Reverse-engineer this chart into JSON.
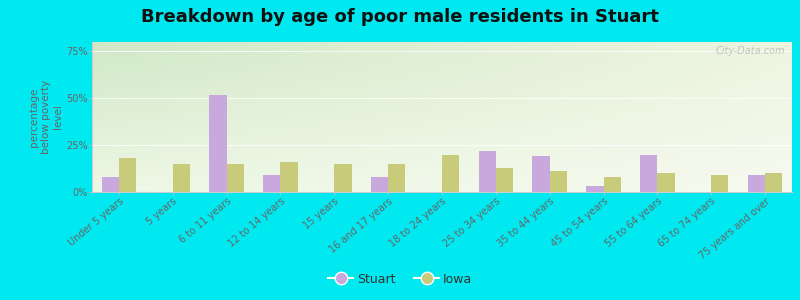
{
  "title": "Breakdown by age of poor male residents in Stuart",
  "categories": [
    "Under 5 years",
    "5 years",
    "6 to 11 years",
    "12 to 14 years",
    "15 years",
    "16 and 17 years",
    "18 to 24 years",
    "25 to 34 years",
    "35 to 44 years",
    "45 to 54 years",
    "55 to 64 years",
    "65 to 74 years",
    "75 years and over"
  ],
  "stuart_values": [
    8,
    0,
    52,
    9,
    0,
    8,
    0,
    22,
    19,
    3,
    20,
    0,
    9
  ],
  "iowa_values": [
    18,
    15,
    15,
    16,
    15,
    15,
    20,
    13,
    11,
    8,
    10,
    9,
    10
  ],
  "stuart_color": "#c9a8de",
  "iowa_color": "#c8cb7a",
  "outer_bg_color": "#00e8f0",
  "ylabel": "percentage\nbelow poverty\nlevel",
  "ylim": [
    0,
    80
  ],
  "yticks": [
    0,
    25,
    50,
    75
  ],
  "ytick_labels": [
    "0%",
    "25%",
    "50%",
    "75%"
  ],
  "bar_width": 0.32,
  "title_fontsize": 13,
  "axis_label_fontsize": 7.5,
  "tick_fontsize": 7,
  "legend_fontsize": 9,
  "watermark": "City-Data.com"
}
